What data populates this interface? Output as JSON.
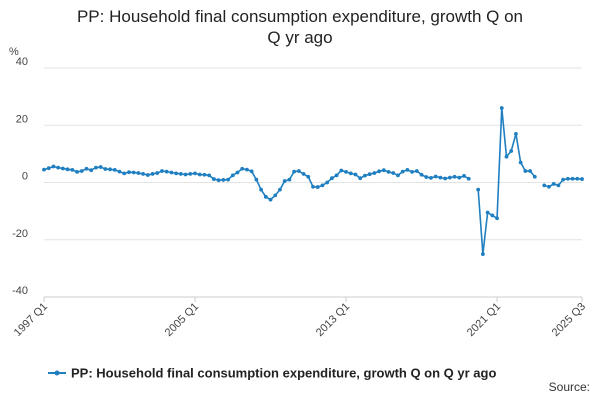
{
  "chart_data": {
    "type": "line",
    "title_line1": "PP: Household final consumption expenditure, growth Q on",
    "title_line2": "Q yr ago",
    "ylabel": "%",
    "ylim": [
      -40,
      40
    ],
    "yticks": [
      -40,
      -20,
      0,
      20,
      40
    ],
    "xticks": [
      {
        "label": "1997 Q1",
        "index": 0
      },
      {
        "label": "2005 Q1",
        "index": 32
      },
      {
        "label": "2013 Q1",
        "index": 64
      },
      {
        "label": "2021 Q1",
        "index": 96
      },
      {
        "label": "2025 Q3",
        "index": 114
      }
    ],
    "grid": true,
    "legend_position": "bottom",
    "color": "#1f7fc0",
    "series": [
      {
        "name": "PP: Household final consumption expenditure, growth Q on Q yr ago",
        "values": [
          4.5,
          5.0,
          5.6,
          5.2,
          4.9,
          4.6,
          4.4,
          3.7,
          4.0,
          4.8,
          4.3,
          5.2,
          5.4,
          4.7,
          4.6,
          4.4,
          3.8,
          3.2,
          3.6,
          3.5,
          3.3,
          3.0,
          2.6,
          3.0,
          3.3,
          4.0,
          3.8,
          3.5,
          3.2,
          3.0,
          2.8,
          3.0,
          3.2,
          2.8,
          2.7,
          2.5,
          1.2,
          0.8,
          0.9,
          1.0,
          2.5,
          3.5,
          4.8,
          4.5,
          3.9,
          1.0,
          -2.5,
          -5.0,
          -6.0,
          -4.5,
          -2.5,
          0.5,
          1.0,
          3.8,
          4.0,
          3.0,
          2.0,
          -1.5,
          -1.6,
          -1.0,
          0.0,
          1.5,
          2.5,
          4.2,
          3.7,
          3.2,
          2.8,
          1.5,
          2.4,
          2.9,
          3.3,
          3.9,
          4.3,
          3.7,
          3.3,
          2.5,
          3.8,
          4.4,
          3.7,
          4.0,
          2.7,
          1.9,
          1.6,
          2.1,
          1.7,
          1.4,
          1.7,
          2.0,
          1.7,
          2.3,
          1.3,
          null,
          -2.5,
          -25.0,
          -10.5,
          -11.5,
          -12.5,
          26.0,
          9.0,
          11.0,
          17.0,
          7.0,
          4.0,
          4.0,
          2.0,
          null,
          -1.0,
          -1.5,
          -0.5,
          -1.0,
          1.0,
          1.3,
          1.3,
          1.3,
          1.2
        ]
      }
    ]
  },
  "source_label": "Source:"
}
